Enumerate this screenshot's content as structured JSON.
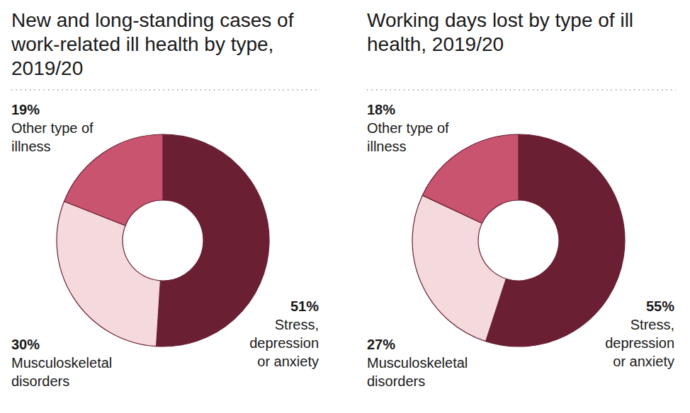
{
  "chart_data": [
    {
      "type": "donut",
      "title": "New and long-standing cases of work-related ill health by type, 2019/20",
      "categories": [
        "Stress, depression or anxiety",
        "Musculoskeletal disorders",
        "Other type of illness"
      ],
      "values": [
        51,
        30,
        19
      ],
      "value_labels": [
        "51%",
        "30%",
        "19%"
      ],
      "colors": [
        "#6b1f33",
        "#f5dadd",
        "#c8546f"
      ],
      "data_labels": true
    },
    {
      "type": "donut",
      "title": "Working days lost by type of ill health, 2019/20",
      "categories": [
        "Stress, depression or anxiety",
        "Musculoskeletal disorders",
        "Other type of illness"
      ],
      "values": [
        55,
        27,
        18
      ],
      "value_labels": [
        "55%",
        "27%",
        "18%"
      ],
      "colors": [
        "#6b1f33",
        "#f5dadd",
        "#c8546f"
      ],
      "data_labels": true
    }
  ]
}
